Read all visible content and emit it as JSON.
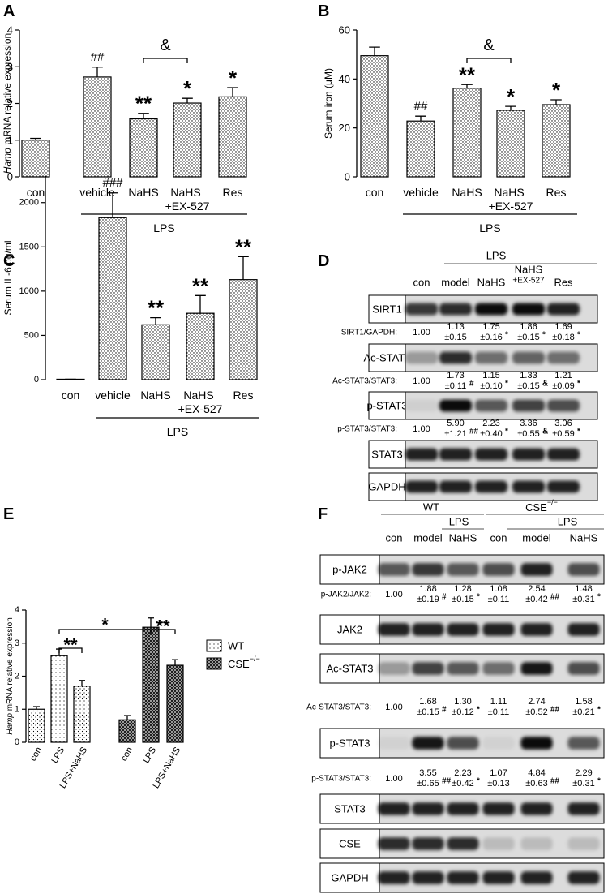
{
  "chart_data": [
    {
      "type": "bar",
      "panel": "A",
      "ylabel": "Hamp mRNA relative expression",
      "ylabel_style": "italic-first-word",
      "categories": [
        "con",
        "vehicle",
        "NaHS",
        "NaHS +EX-527",
        "Res"
      ],
      "values": [
        1.0,
        2.72,
        1.58,
        2.01,
        2.18
      ],
      "errors": [
        0.05,
        0.27,
        0.15,
        0.13,
        0.25
      ],
      "significance": [
        null,
        "##",
        "**",
        "*",
        "*"
      ],
      "bracket_labels": [
        "&"
      ],
      "group_label": "LPS",
      "ylim": [
        0,
        4
      ],
      "yticks": [
        0,
        1,
        2,
        3,
        4
      ],
      "fill_pattern": "dots",
      "color": "#000000"
    },
    {
      "type": "bar",
      "panel": "B",
      "ylabel": "Serum iron (μM)",
      "categories": [
        "con",
        "vehicle",
        "NaHS",
        "NaHS +EX-527",
        "Res"
      ],
      "values": [
        49.5,
        22.8,
        36.2,
        27.2,
        29.5
      ],
      "errors": [
        3.5,
        2.0,
        1.5,
        1.6,
        2.0
      ],
      "significance": [
        null,
        "##",
        "**",
        "*",
        "*"
      ],
      "bracket_labels": [
        "&"
      ],
      "group_label": "LPS",
      "ylim": [
        0,
        60
      ],
      "yticks": [
        0,
        20,
        40,
        60
      ],
      "fill_pattern": "dots",
      "color": "#000000"
    },
    {
      "type": "bar",
      "panel": "C",
      "ylabel": "Serum IL-6 pg/ml",
      "categories": [
        "con",
        "vehicle",
        "NaHS",
        "NaHS +EX-527",
        "Res"
      ],
      "values": [
        5,
        1830,
        620,
        750,
        1130
      ],
      "errors": [
        0,
        280,
        80,
        200,
        260
      ],
      "significance": [
        null,
        "###",
        "**",
        "**",
        "**"
      ],
      "group_label": "LPS",
      "ylim": [
        0,
        2300
      ],
      "yticks": [
        0,
        500,
        1000,
        1500,
        2000
      ],
      "fill_pattern": "dots",
      "color": "#000000"
    },
    {
      "type": "grouped-bar",
      "panel": "E",
      "ylabel": "Hamp mRNA relative expression",
      "ylabel_style": "italic-first-word",
      "categories": [
        "con",
        "LPS",
        "LPS+NaHS"
      ],
      "series": [
        {
          "name": "WT",
          "pattern": "sparse",
          "color": "#000000",
          "values": [
            1.0,
            2.62,
            1.7
          ],
          "errors": [
            0.08,
            0.2,
            0.17
          ]
        },
        {
          "name": "CSE−/−",
          "pattern": "crosshatch",
          "color": "#000000",
          "values": [
            0.68,
            3.48,
            2.33
          ],
          "errors": [
            0.13,
            0.28,
            0.17
          ]
        }
      ],
      "bracket_labels": [
        "*",
        "**",
        "**"
      ],
      "legend": "right",
      "ylim": [
        0,
        4
      ],
      "yticks": [
        0,
        1,
        2,
        3,
        4
      ]
    }
  ],
  "blots": [
    {
      "panel": "D",
      "columns": [
        "con",
        "model",
        "NaHS",
        "NaHS",
        "Res"
      ],
      "column_sublabels": [
        null,
        null,
        null,
        "+EX-527",
        null
      ],
      "groups": [
        {
          "label": "LPS"
        }
      ],
      "rows": [
        {
          "protein": "SIRT1"
        },
        {
          "ratio": "SIRT1/GAPDH:",
          "cells": [
            {
              "mean": "1.00"
            },
            {
              "mean": "1.13",
              "sd": "±0.15"
            },
            {
              "mean": "1.75",
              "sd": "±0.16",
              "sig": "*"
            },
            {
              "mean": "1.86",
              "sd": "±0.15",
              "sig": "*"
            },
            {
              "mean": "1.69",
              "sd": "±0.18",
              "sig": "*"
            }
          ]
        },
        {
          "protein": "Ac-STAT3"
        },
        {
          "ratio": "Ac-STAT3/STAT3:",
          "cells": [
            {
              "mean": "1.00"
            },
            {
              "mean": "1.73",
              "sd": "±0.11",
              "sig": "#"
            },
            {
              "mean": "1.15",
              "sd": "±0.10",
              "sig": "*"
            },
            {
              "mean": "1.33",
              "sd": "±0.15",
              "sig": "&"
            },
            {
              "mean": "1.21",
              "sd": "±0.09",
              "sig": "*"
            }
          ]
        },
        {
          "protein": "p-STAT3"
        },
        {
          "ratio": "p-STAT3/STAT3:",
          "cells": [
            {
              "mean": "1.00"
            },
            {
              "mean": "5.90",
              "sd": "±1.21",
              "sig": "##"
            },
            {
              "mean": "2.23",
              "sd": "±0.40",
              "sig": "*"
            },
            {
              "mean": "3.36",
              "sd": "±0.55",
              "sig": "&"
            },
            {
              "mean": "3.06",
              "sd": "±0.59",
              "sig": "*"
            }
          ]
        },
        {
          "protein": "STAT3"
        },
        {
          "protein": "GAPDH"
        }
      ]
    },
    {
      "panel": "F",
      "columns": [
        "con",
        "model",
        "NaHS",
        "con",
        "model",
        "NaHS"
      ],
      "groups": [
        {
          "label": "WT",
          "sub": "LPS"
        },
        {
          "label": "CSE−/−",
          "sub": "LPS"
        }
      ],
      "rows": [
        {
          "protein": "p-JAK2"
        },
        {
          "ratio": "p-JAK2/JAK2:",
          "cells": [
            {
              "mean": "1.00"
            },
            {
              "mean": "1.88",
              "sd": "±0.19",
              "sig": "#"
            },
            {
              "mean": "1.28",
              "sd": "±0.15",
              "sig": "*"
            },
            {
              "mean": "1.08",
              "sd": "±0.11"
            },
            {
              "mean": "2.54",
              "sd": "±0.42",
              "sig": "##"
            },
            {
              "mean": "1.48",
              "sd": "±0.31",
              "sig": "*"
            }
          ]
        },
        {
          "protein": "JAK2"
        },
        {
          "protein": "Ac-STAT3"
        },
        {
          "ratio": "Ac-STAT3/STAT3:",
          "cells": [
            {
              "mean": "1.00"
            },
            {
              "mean": "1.68",
              "sd": "±0.15",
              "sig": "#"
            },
            {
              "mean": "1.30",
              "sd": "±0.12",
              "sig": "*"
            },
            {
              "mean": "1.11",
              "sd": "±0.11"
            },
            {
              "mean": "2.74",
              "sd": "±0.52",
              "sig": "##"
            },
            {
              "mean": "1.58",
              "sd": "±0.21",
              "sig": "*"
            }
          ]
        },
        {
          "protein": "p-STAT3"
        },
        {
          "ratio": "p-STAT3/STAT3:",
          "cells": [
            {
              "mean": "1.00"
            },
            {
              "mean": "3.55",
              "sd": "±0.65",
              "sig": "##"
            },
            {
              "mean": "2.23",
              "sd": "±0.42",
              "sig": "*"
            },
            {
              "mean": "1.07",
              "sd": "±0.13"
            },
            {
              "mean": "4.84",
              "sd": "±0.63",
              "sig": "##"
            },
            {
              "mean": "2.29",
              "sd": "±0.31",
              "sig": "*"
            }
          ]
        },
        {
          "protein": "STAT3"
        },
        {
          "protein": "CSE"
        },
        {
          "protein": "GAPDH"
        }
      ]
    }
  ]
}
